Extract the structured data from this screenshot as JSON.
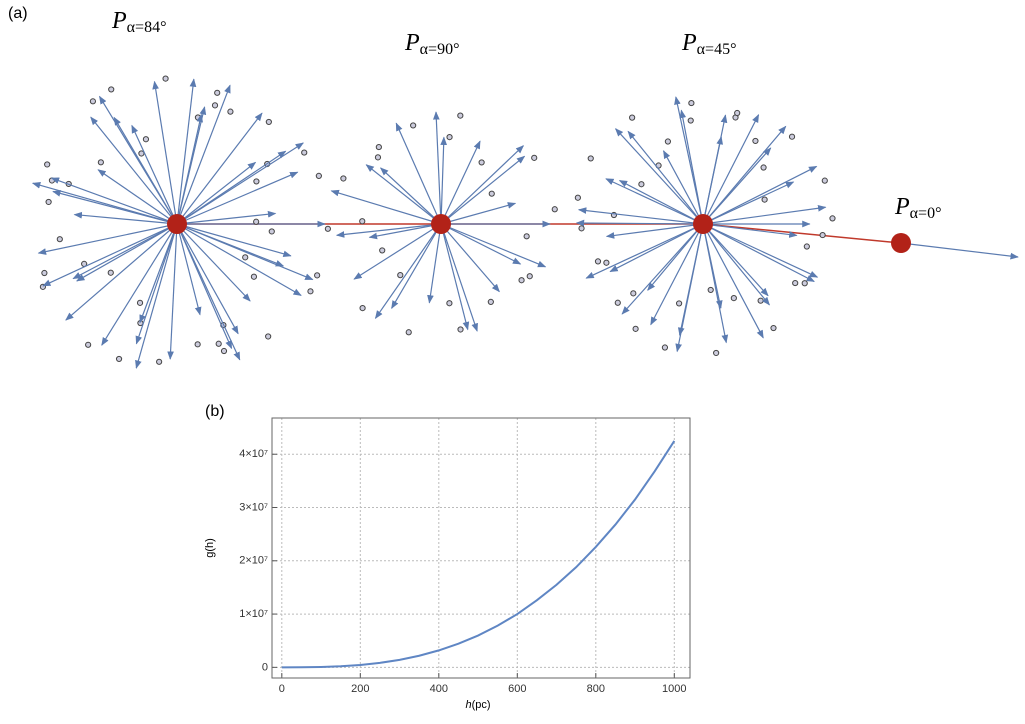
{
  "panel_a": {
    "label": "(a)",
    "nodes": [
      {
        "symbol": "P",
        "subscript": "α=84°"
      },
      {
        "symbol": "P",
        "subscript": "α=90°"
      },
      {
        "symbol": "P",
        "subscript": "α=45°"
      },
      {
        "symbol": "P",
        "subscript": "α=0°"
      }
    ]
  },
  "chart_data": {
    "type": "line",
    "label": "(b)",
    "xlabel_italic": "h",
    "xlabel": "(pc)",
    "ylabel": "g(h)",
    "x": [
      0,
      50,
      100,
      150,
      200,
      250,
      300,
      350,
      400,
      450,
      500,
      550,
      600,
      650,
      700,
      750,
      800,
      850,
      900,
      950,
      1000
    ],
    "values": [
      0,
      8800,
      63000,
      198000,
      447000,
      841000,
      1410000,
      2180000,
      3180000,
      4440000,
      5970000,
      7830000,
      10000000,
      12600000,
      15500000,
      18800000,
      22600000,
      26800000,
      31500000,
      36800000,
      42500000
    ],
    "color": "#5f86c4",
    "xlim": [
      -25,
      1040
    ],
    "ylim": [
      -2000000,
      46800000
    ],
    "xticks": [
      0,
      200,
      400,
      600,
      800,
      1000
    ],
    "yticks": [
      0,
      {
        "value": 10000000,
        "label": "1×10⁷"
      },
      {
        "value": 20000000,
        "label": "2×10⁷"
      },
      {
        "value": 30000000,
        "label": "3×10⁷"
      },
      {
        "value": 40000000,
        "label": "4×10⁷"
      }
    ],
    "grid": true
  }
}
